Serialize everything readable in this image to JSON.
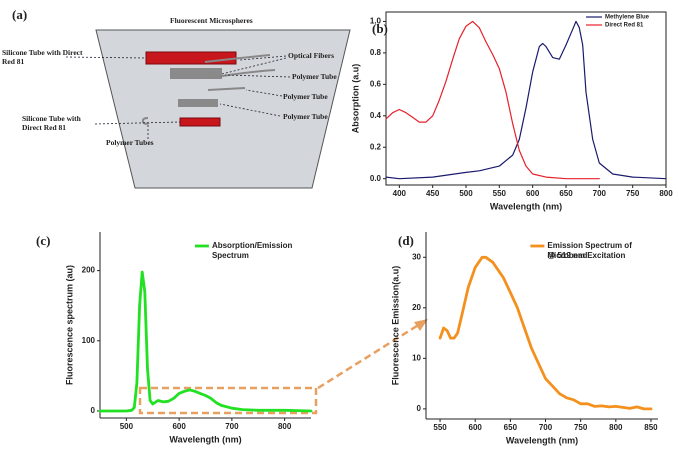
{
  "diagram": {
    "panel_label": "(a)",
    "title": "Fluorescent Microspheres",
    "labels": [
      "Silicone Tube with Direct Red 81",
      "Optical Fibers",
      "Polymer Tube",
      "Polymer Tube",
      "Silicone Tube with Direct Red 81",
      "Polymer Tube",
      "Polymer Tubes"
    ]
  },
  "chart_data": [
    {
      "type": "line",
      "panel_label": "(b)",
      "xlabel": "Wavelength (nm)",
      "ylabel": "Absorption (a.u)",
      "xlim": [
        380,
        800
      ],
      "xticks": [
        400,
        450,
        500,
        550,
        600,
        650,
        700,
        750,
        800
      ],
      "ylim": [
        -0.04,
        1.06
      ],
      "yticks": [
        {
          "value": 0,
          "label": "0.0"
        },
        {
          "value": 0.2,
          "label": "0.2"
        },
        {
          "value": 0.4,
          "label": "0.4"
        },
        {
          "value": 0.6,
          "label": "0.6"
        },
        {
          "value": 0.8,
          "label": "0.8"
        },
        {
          "value": 1,
          "label": "1.0"
        }
      ],
      "legend": "upper right",
      "series": [
        {
          "name": "Methylene Blue",
          "color": "#1a1a6e",
          "x": [
            380,
            400,
            450,
            500,
            520,
            550,
            570,
            580,
            590,
            600,
            610,
            615,
            620,
            630,
            640,
            650,
            660,
            665,
            670,
            675,
            680,
            690,
            700,
            720,
            750,
            800
          ],
          "values": [
            0.01,
            0.0,
            0.01,
            0.04,
            0.05,
            0.08,
            0.15,
            0.25,
            0.45,
            0.68,
            0.84,
            0.86,
            0.84,
            0.77,
            0.76,
            0.85,
            0.95,
            1.0,
            0.96,
            0.85,
            0.55,
            0.25,
            0.1,
            0.03,
            0.01,
            0.0
          ]
        },
        {
          "name": "Direct Red 81",
          "color": "#e8202a",
          "x": [
            380,
            390,
            400,
            410,
            420,
            430,
            440,
            450,
            460,
            470,
            480,
            490,
            500,
            510,
            520,
            530,
            540,
            550,
            560,
            570,
            580,
            590,
            600,
            620,
            650,
            700
          ],
          "values": [
            0.38,
            0.42,
            0.44,
            0.42,
            0.39,
            0.36,
            0.36,
            0.4,
            0.5,
            0.62,
            0.76,
            0.89,
            0.97,
            1.0,
            0.96,
            0.87,
            0.79,
            0.7,
            0.55,
            0.35,
            0.18,
            0.08,
            0.03,
            0.01,
            0.0,
            0.0
          ]
        }
      ]
    },
    {
      "type": "line",
      "panel_label": "(c)",
      "xlabel": "Wavelength (nm)",
      "ylabel": "Fluorescence spectrum (au)",
      "xlim": [
        450,
        850
      ],
      "xticks": [
        500,
        600,
        700,
        800
      ],
      "ylim": [
        -10,
        255
      ],
      "yticks": [
        0,
        100,
        200
      ],
      "legend": "upper right",
      "series": [
        {
          "name": "Absorption/Emission Spectrum",
          "color": "#22e022",
          "x": [
            450,
            500,
            510,
            515,
            520,
            525,
            530,
            535,
            540,
            545,
            550,
            560,
            570,
            580,
            590,
            600,
            610,
            620,
            630,
            640,
            650,
            660,
            670,
            680,
            700,
            720,
            750,
            800,
            850
          ],
          "values": [
            0,
            0,
            1,
            5,
            40,
            150,
            198,
            170,
            60,
            15,
            10,
            15,
            13,
            14,
            18,
            25,
            28,
            30,
            28,
            25,
            22,
            18,
            12,
            8,
            4,
            2,
            1,
            1,
            0
          ]
        }
      ]
    },
    {
      "type": "line",
      "panel_label": "(d)",
      "xlabel": "Wavelength (nm)",
      "ylabel": "Fluorescence Emission(a.u)",
      "xlim": [
        530,
        860
      ],
      "xticks": [
        550,
        600,
        650,
        700,
        750,
        800,
        850
      ],
      "ylim": [
        -2,
        35
      ],
      "yticks": [
        0,
        10,
        20,
        30
      ],
      "legend": "upper right",
      "annotation": "@ 519 nm Excitation",
      "series": [
        {
          "name": "Emission Spectrum of Microbead",
          "color": "#f4901e",
          "x": [
            550,
            555,
            560,
            565,
            570,
            575,
            580,
            585,
            590,
            595,
            600,
            605,
            610,
            615,
            620,
            625,
            630,
            640,
            650,
            660,
            670,
            680,
            690,
            700,
            710,
            720,
            730,
            740,
            750,
            760,
            770,
            780,
            790,
            800,
            810,
            820,
            830,
            840,
            850
          ],
          "values": [
            14,
            16,
            15.5,
            14,
            14,
            15,
            18,
            21,
            24,
            26,
            28,
            29,
            30,
            30,
            29.5,
            29,
            28,
            26,
            23,
            20,
            16,
            12,
            9,
            6,
            4.5,
            3,
            2.2,
            1.8,
            1,
            1,
            0.5,
            0.6,
            0.4,
            0.5,
            0.3,
            0.1,
            0.4,
            0,
            0
          ]
        }
      ]
    }
  ]
}
